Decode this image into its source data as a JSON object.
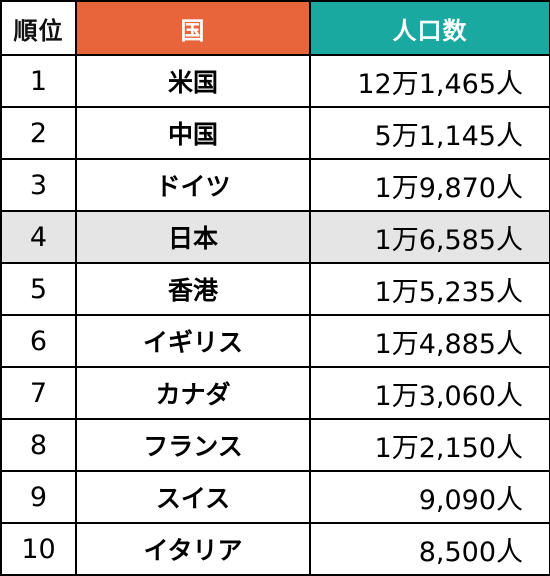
{
  "headers": {
    "rank": "順位",
    "country": "国",
    "population": "人口数"
  },
  "colors": {
    "country_header_bg": "#e8643a",
    "population_header_bg": "#1aa9a0",
    "highlight_row_bg": "#e5e5e5"
  },
  "highlight_rank": "4",
  "rows": [
    {
      "rank": "1",
      "country": "米国",
      "population": "12万1,465人"
    },
    {
      "rank": "2",
      "country": "中国",
      "population": "5万1,145人"
    },
    {
      "rank": "3",
      "country": "ドイツ",
      "population": "1万9,870人"
    },
    {
      "rank": "4",
      "country": "日本",
      "population": "1万6,585人"
    },
    {
      "rank": "5",
      "country": "香港",
      "population": "1万5,235人"
    },
    {
      "rank": "6",
      "country": "イギリス",
      "population": "1万4,885人"
    },
    {
      "rank": "7",
      "country": "カナダ",
      "population": "1万3,060人"
    },
    {
      "rank": "8",
      "country": "フランス",
      "population": "1万2,150人"
    },
    {
      "rank": "9",
      "country": "スイス",
      "population": "9,090人"
    },
    {
      "rank": "10",
      "country": "イタリア",
      "population": "8,500人"
    }
  ]
}
